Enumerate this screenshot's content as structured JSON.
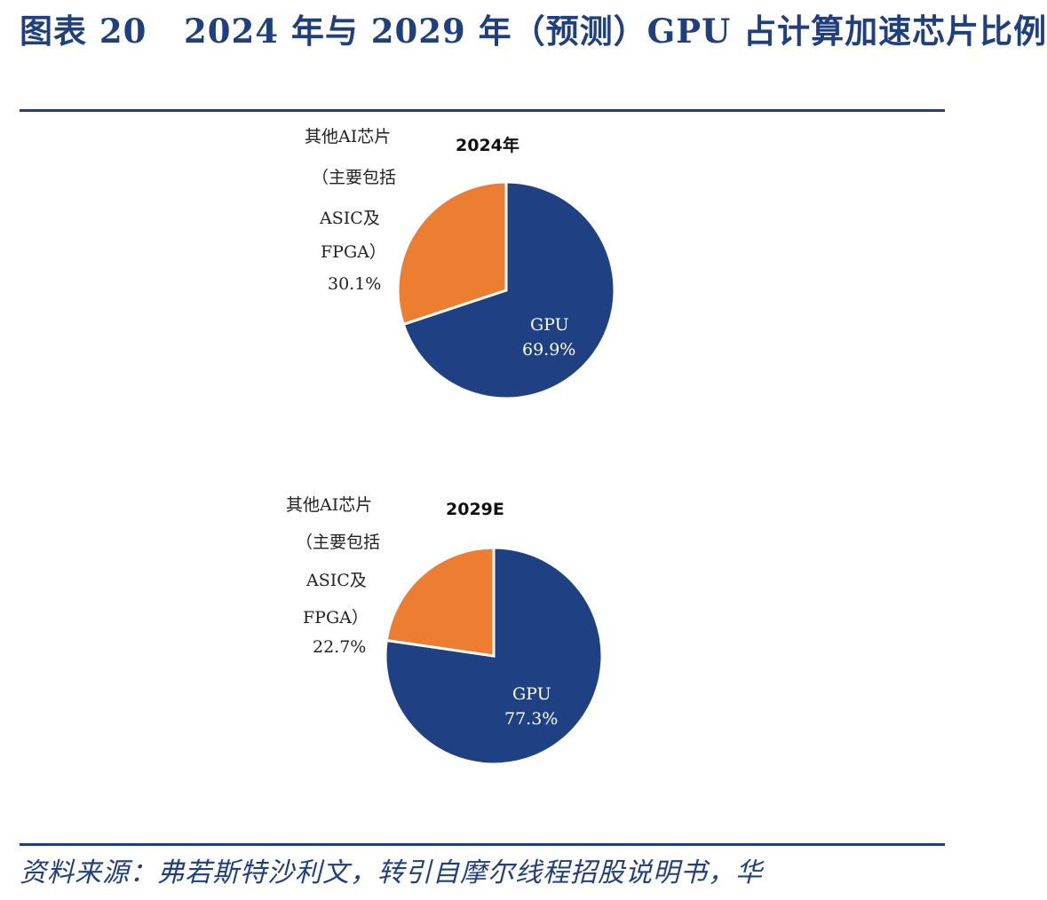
{
  "figure": {
    "title": "图表 20   2024 年与 2029 年（预测）GPU 占计算加速芯片比例",
    "source": "资料来源：弗若斯特沙利文，转引自摩尔线程招股说明书，华"
  },
  "colors": {
    "gpu": "#1f4183",
    "other": "#ed7d31",
    "accent": "#1f3f7f"
  },
  "chart_data": [
    {
      "type": "pie",
      "title": "2024年",
      "slices": [
        {
          "label": "GPU",
          "value": 69.9,
          "value_label": "69.9%",
          "color": "#1f4183"
        },
        {
          "label_lines": [
            "其他AI芯片",
            "（主要包括",
            "ASIC及",
            "FPGA）"
          ],
          "value": 30.1,
          "value_label": "30.1%",
          "color": "#ed7d31"
        }
      ]
    },
    {
      "type": "pie",
      "title": "2029E",
      "slices": [
        {
          "label": "GPU",
          "value": 77.3,
          "value_label": "77.3%",
          "color": "#1f4183"
        },
        {
          "label_lines": [
            "其他AI芯片",
            "（主要包括",
            "ASIC及",
            "FPGA）"
          ],
          "value": 22.7,
          "value_label": "22.7%",
          "color": "#ed7d31"
        }
      ]
    }
  ]
}
